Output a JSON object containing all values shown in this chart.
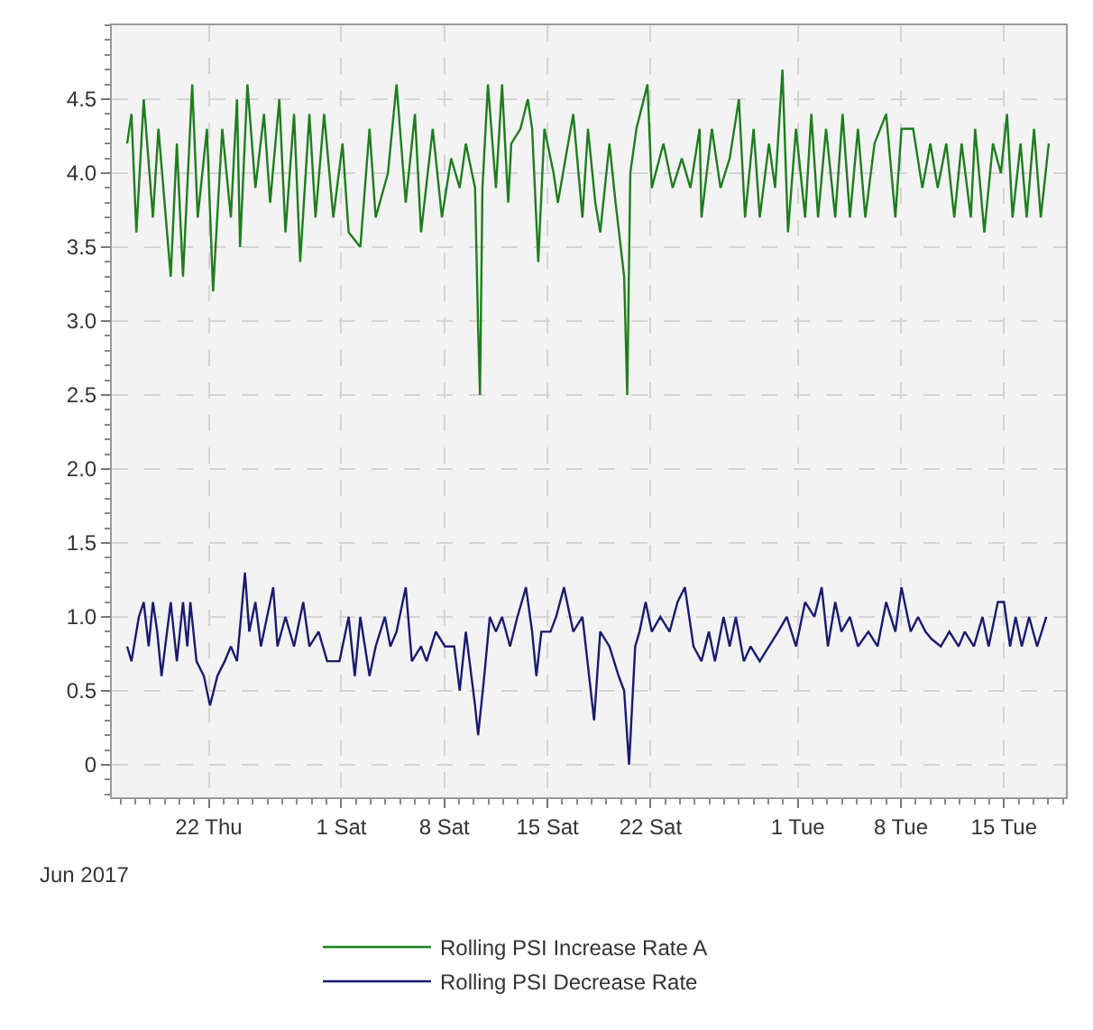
{
  "chart_data": {
    "type": "line",
    "xlabel": "Jun 2017",
    "xlim": [
      "2017-06-15T10:00",
      "2017-08-19T05:00"
    ],
    "xticks": [
      {
        "value": "2017-06-22",
        "label": "22 Thu"
      },
      {
        "value": "2017-07-01",
        "label": "1 Sat"
      },
      {
        "value": "2017-07-08",
        "label": "8 Sat"
      },
      {
        "value": "2017-07-15",
        "label": "15 Sat"
      },
      {
        "value": "2017-07-22",
        "label": "22 Sat"
      },
      {
        "value": "2017-08-01",
        "label": "1 Tue"
      },
      {
        "value": "2017-08-08",
        "label": "8 Tue"
      },
      {
        "value": "2017-08-15",
        "label": "15 Tue"
      }
    ],
    "ylim": [
      -0.22,
      5.0
    ],
    "yticks": [
      0,
      {
        "value": 0.5,
        "label": "0.5"
      },
      {
        "value": 1,
        "label": "1.0"
      },
      {
        "value": 1.5,
        "label": "1.5"
      },
      {
        "value": 2,
        "label": "2.0"
      },
      {
        "value": 2.5,
        "label": "2.5"
      },
      {
        "value": 3,
        "label": "3.0"
      },
      {
        "value": 3.5,
        "label": "3.5"
      },
      {
        "value": 4,
        "label": "4.0"
      },
      {
        "value": 4.5,
        "label": "4.5"
      }
    ],
    "grid": true,
    "legend": "bottom",
    "marker": "none",
    "line_style": "solid",
    "series": [
      {
        "name": "Rolling PSI Increase Rate A",
        "color": "#1e7d1e",
        "x": [
          "2017-06-16T11:00",
          "2017-06-16T18:00",
          "2017-06-17T02:00",
          "2017-06-17T14:00",
          "2017-06-18T05:00",
          "2017-06-18T14:00",
          "2017-06-19T10:00",
          "2017-06-19T20:00",
          "2017-06-20T06:00",
          "2017-06-20T21:00",
          "2017-06-21T06:00",
          "2017-06-21T21:00",
          "2017-06-22T07:00",
          "2017-06-22T22:00",
          "2017-06-23T12:00",
          "2017-06-23T22:00",
          "2017-06-24T03:00",
          "2017-06-24T15:00",
          "2017-06-25T04:00",
          "2017-06-25T18:00",
          "2017-06-26T04:00",
          "2017-06-26T19:00",
          "2017-06-27T05:00",
          "2017-06-27T19:00",
          "2017-06-28T05:00",
          "2017-06-28T20:00",
          "2017-06-29T06:00",
          "2017-06-29T20:00",
          "2017-06-30T11:00",
          "2017-07-01T02:00",
          "2017-07-01T12:00",
          "2017-07-02T07:00",
          "2017-07-02T22:00",
          "2017-07-03T08:00",
          "2017-07-04T04:00",
          "2017-07-04T18:00",
          "2017-07-05T09:00",
          "2017-07-06T00:00",
          "2017-07-06T10:00",
          "2017-07-07T05:00",
          "2017-07-07T20:00",
          "2017-07-08T11:00",
          "2017-07-09T01:00",
          "2017-07-09T11:00",
          "2017-07-10T02:00",
          "2017-07-10T07:00",
          "2017-07-10T10:00",
          "2017-07-10T14:00",
          "2017-07-10T23:00",
          "2017-07-11T12:00",
          "2017-07-11T22:00",
          "2017-07-12T08:00",
          "2017-07-12T13:00",
          "2017-07-13T04:00",
          "2017-07-13T16:00",
          "2017-07-13T23:00",
          "2017-07-14T09:00",
          "2017-07-14T19:00",
          "2017-07-15T10:00",
          "2017-07-15T17:00",
          "2017-07-16T18:00",
          "2017-07-17T09:00",
          "2017-07-17T18:00",
          "2017-07-18T06:00",
          "2017-07-18T14:00",
          "2017-07-19T05:00",
          "2017-07-19T15:00",
          "2017-07-20T05:00",
          "2017-07-20T10:00",
          "2017-07-20T15:00",
          "2017-07-21T01:00",
          "2017-07-21T19:00",
          "2017-07-22T02:00",
          "2017-07-22T21:00",
          "2017-07-23T12:00",
          "2017-07-24T03:00",
          "2017-07-24T17:00",
          "2017-07-25T08:00",
          "2017-07-25T11:00",
          "2017-07-26T04:00",
          "2017-07-26T18:00",
          "2017-07-27T09:00",
          "2017-07-28T00:00",
          "2017-07-28T10:00",
          "2017-07-29T00:00",
          "2017-07-29T10:00",
          "2017-07-30T01:00",
          "2017-07-30T11:00",
          "2017-07-30T23:00",
          "2017-07-31T08:00",
          "2017-07-31T21:00",
          "2017-08-01T12:00",
          "2017-08-01T22:00",
          "2017-08-02T09:00",
          "2017-08-02T22:00",
          "2017-08-03T13:00",
          "2017-08-04T01:00",
          "2017-08-04T13:00",
          "2017-08-05T02:00",
          "2017-08-05T14:00",
          "2017-08-06T05:00",
          "2017-08-07T00:00",
          "2017-08-07T15:00",
          "2017-08-08T01:00",
          "2017-08-08T20:00",
          "2017-08-09T11:00",
          "2017-08-10T00:00",
          "2017-08-10T12:00",
          "2017-08-11T02:00",
          "2017-08-11T15:00",
          "2017-08-12T03:00",
          "2017-08-12T18:00",
          "2017-08-13T01:00",
          "2017-08-13T16:00",
          "2017-08-14T06:00",
          "2017-08-14T19:00",
          "2017-08-15T05:00",
          "2017-08-15T14:00",
          "2017-08-16T03:00",
          "2017-08-16T13:00",
          "2017-08-17T01:00",
          "2017-08-17T12:00",
          "2017-08-18T01:00"
        ],
        "values": [
          4.2,
          4.4,
          3.6,
          4.5,
          3.7,
          4.3,
          3.3,
          4.2,
          3.3,
          4.6,
          3.7,
          4.3,
          3.2,
          4.3,
          3.7,
          4.5,
          3.5,
          4.6,
          3.9,
          4.4,
          3.8,
          4.5,
          3.6,
          4.4,
          3.4,
          4.4,
          3.7,
          4.4,
          3.7,
          4.2,
          3.6,
          3.5,
          4.3,
          3.7,
          4.0,
          4.6,
          3.8,
          4.4,
          3.6,
          4.3,
          3.7,
          4.1,
          3.9,
          4.2,
          3.9,
          2.95,
          2.5,
          3.9,
          4.6,
          3.9,
          4.6,
          3.8,
          4.2,
          4.3,
          4.5,
          4.3,
          3.4,
          4.3,
          4.0,
          3.8,
          4.4,
          3.7,
          4.3,
          3.8,
          3.6,
          4.2,
          3.8,
          3.3,
          2.5,
          4.0,
          4.3,
          4.6,
          3.9,
          4.2,
          3.9,
          4.1,
          3.9,
          4.3,
          3.7,
          4.3,
          3.9,
          4.1,
          4.5,
          3.7,
          4.3,
          3.7,
          4.2,
          3.9,
          4.7,
          3.6,
          4.3,
          3.7,
          4.4,
          3.7,
          4.3,
          3.7,
          4.4,
          3.7,
          4.3,
          3.7,
          4.2,
          4.4,
          3.7,
          4.3,
          4.3,
          3.9,
          4.2,
          3.9,
          4.2,
          3.7,
          4.2,
          3.7,
          4.3,
          3.6,
          4.2,
          4.0,
          4.4,
          3.7,
          4.2,
          3.7,
          4.3,
          3.7,
          4.2
        ]
      },
      {
        "name": "Rolling PSI Decrease Rate",
        "color": "#1a1a6e",
        "x": [
          "2017-06-16T11:00",
          "2017-06-16T18:00",
          "2017-06-17T06:00",
          "2017-06-17T14:00",
          "2017-06-17T22:00",
          "2017-06-18T05:00",
          "2017-06-18T12:00",
          "2017-06-18T19:00",
          "2017-06-19T10:00",
          "2017-06-19T20:00",
          "2017-06-20T06:00",
          "2017-06-20T13:00",
          "2017-06-20T18:00",
          "2017-06-21T04:00",
          "2017-06-21T16:00",
          "2017-06-22T02:00",
          "2017-06-22T14:00",
          "2017-06-23T02:00",
          "2017-06-23T12:00",
          "2017-06-23T22:00",
          "2017-06-24T11:00",
          "2017-06-24T18:00",
          "2017-06-25T04:00",
          "2017-06-25T13:00",
          "2017-06-25T23:00",
          "2017-06-26T09:00",
          "2017-06-26T16:00",
          "2017-06-27T05:00",
          "2017-06-27T19:00",
          "2017-06-28T10:00",
          "2017-06-28T20:00",
          "2017-06-29T11:00",
          "2017-06-30T01:00",
          "2017-06-30T21:00",
          "2017-07-01T12:00",
          "2017-07-01T22:00",
          "2017-07-02T07:00",
          "2017-07-02T22:00",
          "2017-07-03T08:00",
          "2017-07-03T23:00",
          "2017-07-04T08:00",
          "2017-07-04T18:00",
          "2017-07-05T09:00",
          "2017-07-05T19:00",
          "2017-07-06T10:00",
          "2017-07-06T19:00",
          "2017-07-07T10:00",
          "2017-07-08T01:00",
          "2017-07-08T16:00",
          "2017-07-09T01:00",
          "2017-07-09T11:00",
          "2017-07-10T02:00",
          "2017-07-10T07:00",
          "2017-07-10T17:00",
          "2017-07-11T02:00",
          "2017-07-11T12:00",
          "2017-07-11T22:00",
          "2017-07-12T11:00",
          "2017-07-12T23:00",
          "2017-07-13T13:00",
          "2017-07-13T23:00",
          "2017-07-14T06:00",
          "2017-07-14T14:00",
          "2017-07-15T05:00",
          "2017-07-15T14:00",
          "2017-07-16T03:00",
          "2017-07-16T18:00",
          "2017-07-17T09:00",
          "2017-07-18T04:00",
          "2017-07-18T14:00",
          "2017-07-19T05:00",
          "2017-07-19T20:00",
          "2017-07-20T05:00",
          "2017-07-20T13:00",
          "2017-07-20T23:00",
          "2017-07-21T06:00",
          "2017-07-21T16:00",
          "2017-07-22T02:00",
          "2017-07-22T16:00",
          "2017-07-23T07:00",
          "2017-07-23T20:00",
          "2017-07-24T08:00",
          "2017-07-24T22:00",
          "2017-07-25T11:00",
          "2017-07-25T23:00",
          "2017-07-26T09:00",
          "2017-07-26T23:00",
          "2017-07-27T09:00",
          "2017-07-27T19:00",
          "2017-07-28T08:00",
          "2017-07-28T19:00",
          "2017-07-29T10:00",
          "2017-07-30T01:00",
          "2017-07-30T16:00",
          "2017-07-31T06:00",
          "2017-07-31T21:00",
          "2017-08-01T12:00",
          "2017-08-02T03:00",
          "2017-08-02T15:00",
          "2017-08-03T01:00",
          "2017-08-03T13:00",
          "2017-08-03T23:00",
          "2017-08-04T13:00",
          "2017-08-05T02:00",
          "2017-08-05T19:00",
          "2017-08-06T10:00",
          "2017-08-07T00:00",
          "2017-08-07T15:00",
          "2017-08-08T01:00",
          "2017-08-08T16:00",
          "2017-08-09T04:00",
          "2017-08-09T16:00",
          "2017-08-10T02:00",
          "2017-08-10T17:00",
          "2017-08-11T07:00",
          "2017-08-11T22:00",
          "2017-08-12T08:00",
          "2017-08-12T23:00",
          "2017-08-13T13:00",
          "2017-08-13T23:00",
          "2017-08-14T14:00",
          "2017-08-15T00:00",
          "2017-08-15T10:00",
          "2017-08-15T19:00",
          "2017-08-16T05:00",
          "2017-08-16T17:00",
          "2017-08-17T06:00",
          "2017-08-17T21:00"
        ],
        "values": [
          0.8,
          0.7,
          1.0,
          1.1,
          0.8,
          1.1,
          0.9,
          0.6,
          1.1,
          0.7,
          1.1,
          0.8,
          1.1,
          0.7,
          0.6,
          0.4,
          0.6,
          0.7,
          0.8,
          0.7,
          1.3,
          0.9,
          1.1,
          0.8,
          1.0,
          1.2,
          0.8,
          1.0,
          0.8,
          1.1,
          0.8,
          0.9,
          0.7,
          0.7,
          1.0,
          0.6,
          1.0,
          0.6,
          0.8,
          1.0,
          0.8,
          0.9,
          1.2,
          0.7,
          0.8,
          0.7,
          0.9,
          0.8,
          0.8,
          0.5,
          0.9,
          0.4,
          0.2,
          0.6,
          1.0,
          0.9,
          1.0,
          0.8,
          1.0,
          1.2,
          0.9,
          0.6,
          0.9,
          0.9,
          1.0,
          1.2,
          0.9,
          1.0,
          0.3,
          0.9,
          0.8,
          0.6,
          0.5,
          0.0,
          0.8,
          0.9,
          1.1,
          0.9,
          1.0,
          0.9,
          1.1,
          1.2,
          0.8,
          0.7,
          0.9,
          0.7,
          1.0,
          0.8,
          1.0,
          0.7,
          0.8,
          0.7,
          0.8,
          0.9,
          1.0,
          0.8,
          1.1,
          1.0,
          1.2,
          0.8,
          1.1,
          0.9,
          1.0,
          0.8,
          0.9,
          0.8,
          1.1,
          0.9,
          1.2,
          0.9,
          1.0,
          0.9,
          0.85,
          0.8,
          0.9,
          0.8,
          0.9,
          0.8,
          1.0,
          0.8,
          1.1,
          1.1,
          0.8,
          1.0,
          0.8,
          1.0,
          0.8,
          1.0
        ]
      }
    ]
  }
}
